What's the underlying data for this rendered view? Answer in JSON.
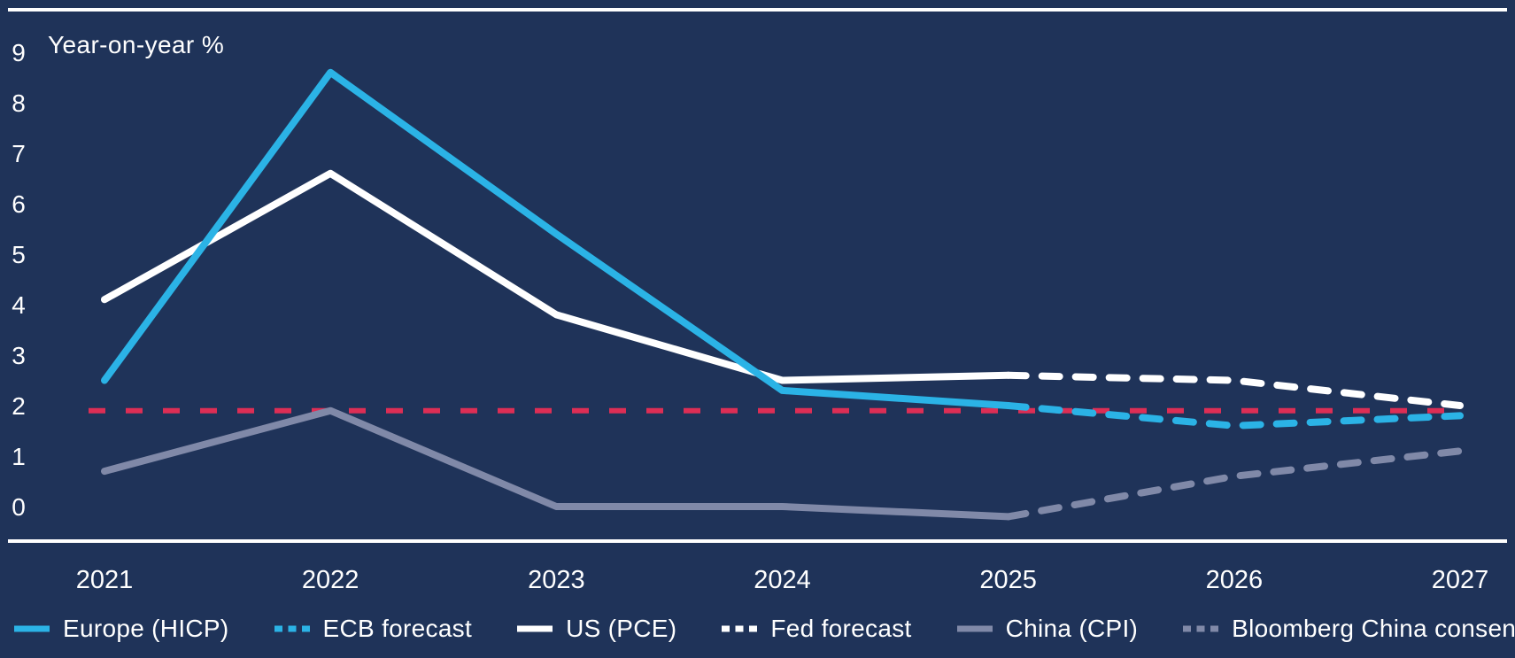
{
  "background": "#1f3359",
  "axis_color": "#ffffff",
  "chart_data": {
    "type": "line",
    "title": "",
    "ylabel": "Year-on-year %",
    "xlabel": "",
    "x_tick_labels": [
      "2021",
      "2022",
      "2023",
      "2024",
      "2025",
      "2026",
      "2027"
    ],
    "y_tick_labels": [
      "9",
      "8",
      "7",
      "6",
      "5",
      "4",
      "3",
      "2",
      "1",
      "0"
    ],
    "y_tick_values": [
      9,
      8,
      7,
      6,
      5,
      4,
      3,
      2,
      1,
      0
    ],
    "xlim": [
      2021,
      2027
    ],
    "ylim": [
      -0.7,
      9.8
    ],
    "grid": false,
    "legend_position": "bottom",
    "series": [
      {
        "name": "Europe (HICP)",
        "kind": "actual",
        "style": "solid",
        "color": "#2bb3e6",
        "x": [
          2021,
          2022,
          2023,
          2024,
          2025
        ],
        "values": [
          2.5,
          8.6,
          5.4,
          2.3,
          2.0
        ]
      },
      {
        "name": "ECB forecast",
        "kind": "forecast",
        "style": "dashed",
        "color": "#2bb3e6",
        "x": [
          2025,
          2026,
          2027
        ],
        "values": [
          2.0,
          1.6,
          1.8
        ]
      },
      {
        "name": "US (PCE)",
        "kind": "actual",
        "style": "solid",
        "color": "#ffffff",
        "x": [
          2021,
          2022,
          2023,
          2024,
          2025
        ],
        "values": [
          4.1,
          6.6,
          3.8,
          2.5,
          2.6
        ]
      },
      {
        "name": "Fed forecast",
        "kind": "forecast",
        "style": "dashed",
        "color": "#ffffff",
        "x": [
          2025,
          2026,
          2027
        ],
        "values": [
          2.6,
          2.5,
          2.0
        ]
      },
      {
        "name": "China (CPI)",
        "kind": "actual",
        "style": "solid",
        "color": "#8089a8",
        "x": [
          2021,
          2022,
          2023,
          2024,
          2025
        ],
        "values": [
          0.7,
          1.9,
          0.0,
          0.0,
          -0.2
        ]
      },
      {
        "name": "Bloomberg China consensus",
        "kind": "forecast",
        "style": "dashed",
        "color": "#8089a8",
        "x": [
          2025,
          2026,
          2027
        ],
        "values": [
          -0.2,
          0.6,
          1.1
        ]
      }
    ],
    "reference_line": {
      "value": 1.9,
      "color": "#dd2e55",
      "style": "dashed"
    }
  }
}
